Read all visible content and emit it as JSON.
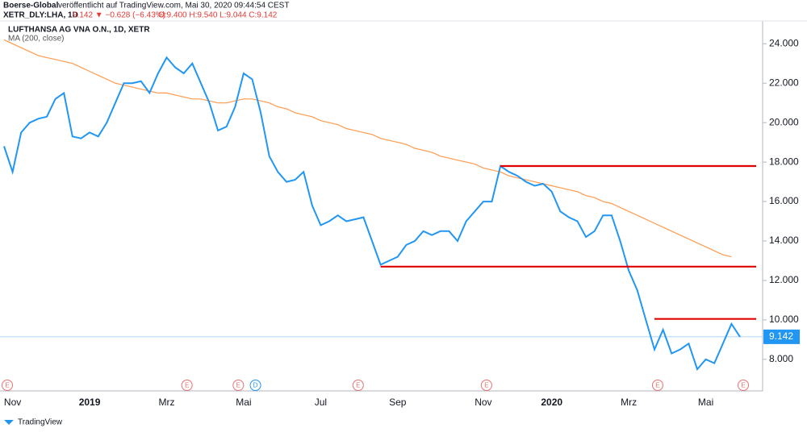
{
  "header": {
    "publisher": "Boerse-Global",
    "published": "veröffentlicht auf TradingView.com, Mai 30, 2020 09:44:54 CEST",
    "symbol": "XETR_DLY:LHA, 1D",
    "change": "9.142 ▼ −0.628 (−6.43%)",
    "ohlc": "O:9.400 H:9.540 L:9.044 C:9.142"
  },
  "footer": {
    "brand": "TradingView"
  },
  "chart_data": {
    "type": "line",
    "title": "LUFTHANSA AG VNA O.N., 1D, XETR",
    "categories": [
      null,
      "Nov",
      null,
      null,
      null,
      null,
      null,
      null,
      null,
      null,
      "2019",
      null,
      null,
      null,
      null,
      null,
      null,
      null,
      null,
      "Mrz",
      null,
      null,
      null,
      null,
      null,
      null,
      null,
      null,
      "Mai",
      null,
      null,
      null,
      null,
      null,
      null,
      null,
      null,
      "Jul",
      null,
      null,
      null,
      null,
      null,
      null,
      null,
      null,
      "Sep",
      null,
      null,
      null,
      null,
      null,
      null,
      null,
      null,
      null,
      "Nov",
      null,
      null,
      null,
      null,
      null,
      null,
      null,
      "2020",
      null,
      null,
      null,
      null,
      null,
      null,
      null,
      null,
      "Mrz",
      null,
      null,
      null,
      null,
      null,
      null,
      null,
      null,
      "Mai",
      null,
      null,
      null,
      null
    ],
    "series": [
      {
        "name": "LUFTHANSA AG VNA O.N.",
        "color": "#2196f3",
        "values": [
          18.8,
          17.5,
          19.5,
          20.0,
          20.2,
          20.3,
          21.2,
          21.5,
          19.3,
          19.2,
          19.5,
          19.3,
          20.0,
          21.0,
          22.0,
          22.0,
          22.1,
          21.5,
          22.5,
          23.3,
          22.8,
          22.5,
          23.0,
          22.0,
          21.0,
          19.6,
          19.8,
          20.8,
          22.5,
          22.2,
          20.5,
          18.3,
          17.5,
          17.0,
          17.1,
          17.5,
          15.8,
          14.8,
          15.0,
          15.3,
          15.0,
          15.1,
          15.2,
          14.0,
          12.8,
          13.0,
          13.2,
          13.8,
          14.0,
          14.5,
          14.3,
          14.5,
          14.5,
          14.0,
          15.0,
          15.5,
          16.0,
          16.0,
          17.8,
          17.5,
          17.3,
          17.0,
          16.8,
          16.9,
          16.5,
          15.5,
          15.2,
          15.0,
          14.2,
          14.5,
          15.3,
          15.3,
          14.0,
          12.5,
          11.5,
          10.0,
          8.5,
          9.5,
          8.3,
          8.5,
          8.8,
          7.5,
          8.0,
          7.8,
          8.8,
          9.8,
          9.142
        ]
      },
      {
        "name": "MA (200, close)",
        "color": "#ff9a4d",
        "values": [
          24.2,
          24.0,
          23.8,
          23.6,
          23.4,
          23.3,
          23.2,
          23.1,
          23.0,
          22.8,
          22.6,
          22.4,
          22.2,
          22.0,
          21.9,
          21.8,
          21.7,
          21.6,
          21.5,
          21.5,
          21.4,
          21.3,
          21.2,
          21.2,
          21.1,
          21.0,
          21.0,
          21.1,
          21.2,
          21.2,
          21.1,
          21.0,
          20.8,
          20.7,
          20.5,
          20.4,
          20.3,
          20.1,
          20.0,
          19.9,
          19.7,
          19.6,
          19.5,
          19.4,
          19.2,
          19.1,
          19.0,
          18.9,
          18.7,
          18.6,
          18.5,
          18.3,
          18.2,
          18.1,
          18.0,
          17.9,
          17.7,
          17.6,
          17.5,
          17.3,
          17.2,
          17.1,
          17.0,
          16.9,
          16.8,
          16.7,
          16.6,
          16.5,
          16.3,
          16.2,
          16.0,
          15.9,
          15.7,
          15.5,
          15.3,
          15.1,
          14.9,
          14.7,
          14.5,
          14.3,
          14.1,
          13.9,
          13.7,
          13.5,
          13.3,
          13.2,
          null
        ]
      }
    ],
    "levels": [
      {
        "value": 17.8,
        "from": 58
      },
      {
        "value": 12.7,
        "from": 44
      },
      {
        "value": 10.05,
        "from": 76
      }
    ],
    "level_color": "#e00000",
    "events": [
      {
        "label": "E",
        "at": 0
      },
      {
        "label": "E",
        "at": 21
      },
      {
        "label": "E",
        "at": 27
      },
      {
        "label": "D",
        "at": 29
      },
      {
        "label": "E",
        "at": 41
      },
      {
        "label": "E",
        "at": 56
      },
      {
        "label": "E",
        "at": 76
      },
      {
        "label": "E",
        "at": 86
      }
    ],
    "ylim": [
      6.4,
      25.4
    ],
    "yticks": [
      {
        "value": 8,
        "label": "8.000"
      },
      {
        "value": 10,
        "label": "10.000"
      },
      {
        "value": 12,
        "label": "12.000"
      },
      {
        "value": 14,
        "label": "14.000"
      },
      {
        "value": 16,
        "label": "16.000"
      },
      {
        "value": 18,
        "label": "18.000"
      },
      {
        "value": 20,
        "label": "20.000"
      },
      {
        "value": 22,
        "label": "22.000"
      },
      {
        "value": 24,
        "label": "24.000"
      }
    ],
    "grid": false
  }
}
